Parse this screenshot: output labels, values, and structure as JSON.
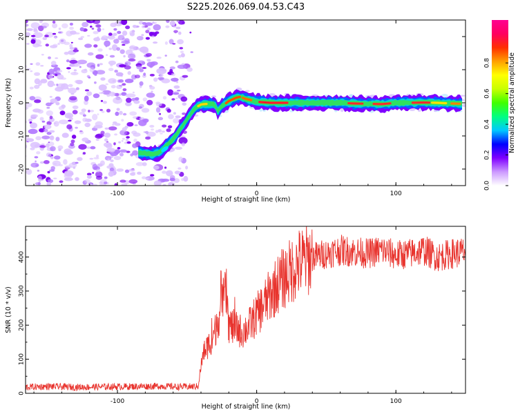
{
  "chart_data": [
    {
      "type": "heatmap",
      "title": "S225.2026.069.04.53.C43",
      "xlabel": "Height of straight line (km)",
      "ylabel": "Frequency (Hz)",
      "xlim": [
        -166,
        150
      ],
      "ylim": [
        -25,
        25
      ],
      "xticks": [
        -100,
        0,
        100
      ],
      "yticks": [
        -20,
        -10,
        0,
        10,
        20
      ],
      "ridge": {
        "description": "Doppler ridge of normalized spectral amplitude",
        "x": [
          -85,
          -75,
          -70,
          -65,
          -60,
          -55,
          -50,
          -47,
          -44,
          -40,
          -35,
          -30,
          -28,
          -25,
          -20,
          -15,
          -12,
          -8,
          -4,
          0,
          10,
          20,
          40,
          60,
          70,
          80,
          90,
          100,
          110,
          120,
          130,
          140,
          148
        ],
        "y": [
          -15,
          -15.5,
          -15,
          -13,
          -11,
          -8,
          -5,
          -3,
          -1.5,
          -0.5,
          -0.3,
          -0.5,
          -2.5,
          -1,
          0.5,
          1.5,
          1.8,
          1.2,
          0.8,
          0.3,
          0,
          0,
          0,
          0,
          -0.2,
          -0.3,
          -0.4,
          0,
          0,
          0.1,
          0,
          -0.2,
          -0.3
        ]
      },
      "noise_region_x": [
        -166,
        -50
      ]
    },
    {
      "type": "line",
      "xlabel": "Height of straight line (km)",
      "ylabel": "SNR (10 * v/v)",
      "xlim": [
        -166,
        150
      ],
      "ylim": [
        0,
        490
      ],
      "xticks": [
        -100,
        0,
        100
      ],
      "yticks": [
        0,
        100,
        200,
        300,
        400
      ],
      "color": "#e8342e",
      "series": [
        {
          "name": "SNR",
          "x": [
            -166,
            -150,
            -130,
            -110,
            -90,
            -70,
            -55,
            -42,
            -40,
            -38,
            -35,
            -32,
            -30,
            -28,
            -25,
            -22,
            -20,
            -15,
            -10,
            -5,
            0,
            5,
            10,
            15,
            20,
            25,
            30,
            40,
            50,
            60,
            70,
            80,
            90,
            100,
            110,
            120,
            130,
            140,
            150
          ],
          "values": [
            18,
            20,
            18,
            19,
            20,
            21,
            19,
            20,
            80,
            120,
            140,
            160,
            180,
            220,
            250,
            300,
            200,
            190,
            180,
            200,
            230,
            260,
            290,
            320,
            340,
            360,
            380,
            400,
            410,
            420,
            415,
            410,
            420,
            405,
            410,
            420,
            400,
            410,
            415
          ]
        }
      ]
    }
  ],
  "colorbar": {
    "label": "Normalized spectral amplitude",
    "ticks": [
      "0.0",
      "0.2",
      "0.4",
      "0.6",
      "0.8"
    ],
    "colors": [
      "#ffffff",
      "#cc99ff",
      "#7f00ff",
      "#0000ff",
      "#00c8ff",
      "#00ff80",
      "#40ff00",
      "#c8ff00",
      "#ffff00",
      "#ffa000",
      "#ff3000",
      "#ff0060",
      "#ff0090"
    ]
  }
}
